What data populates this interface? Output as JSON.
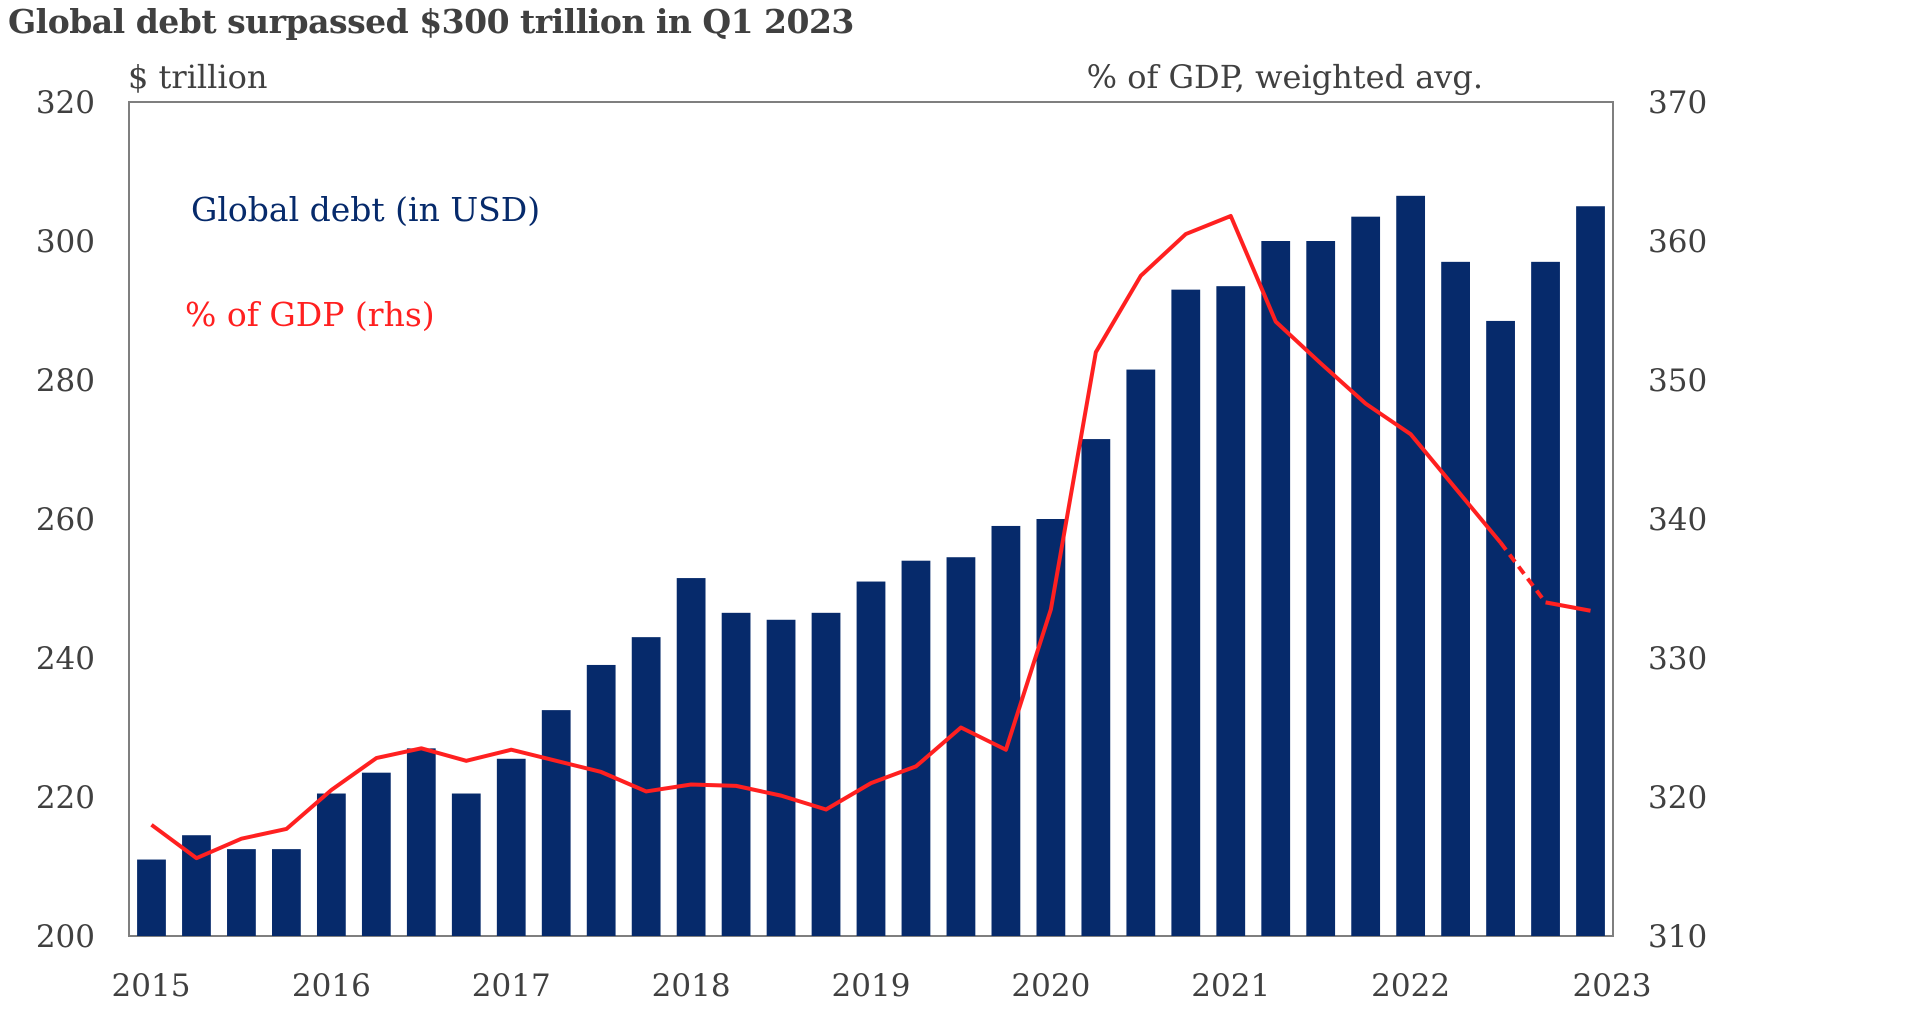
{
  "chart_data": {
    "type": "bar",
    "title": "Global debt surpassed $300  trillion in Q1 2023",
    "y_left_unit": "$ trillion",
    "y_right_unit": "% of GDP, weighted avg.",
    "ylim_left": [
      200,
      320
    ],
    "ylim_right": [
      310,
      370
    ],
    "yticks_left": [
      "200",
      "220",
      "240",
      "260",
      "280",
      "300",
      "320"
    ],
    "yticks_right": [
      "310",
      "320",
      "330",
      "340",
      "350",
      "360",
      "370"
    ],
    "xticks": [
      "2015",
      "2016",
      "2017",
      "2018",
      "2019",
      "2020",
      "2021",
      "2022",
      "2023"
    ],
    "grid": false,
    "legend_placement": "top-left",
    "colors": {
      "bar": "#062a6b",
      "line": "#ff2020",
      "text": "#404040"
    },
    "series": [
      {
        "name": "Global debt (in USD)",
        "type": "bar",
        "axis": "left",
        "x": [
          "Q1 2015",
          "Q2 2015",
          "Q3 2015",
          "Q4 2015",
          "Q1 2016",
          "Q2 2016",
          "Q3 2016",
          "Q4 2016",
          "Q1 2017",
          "Q2 2017",
          "Q3 2017",
          "Q4 2017",
          "Q1 2018",
          "Q2 2018",
          "Q3 2018",
          "Q4 2018",
          "Q1 2019",
          "Q2 2019",
          "Q3 2019",
          "Q4 2019",
          "Q1 2020",
          "Q2 2020",
          "Q3 2020",
          "Q4 2020",
          "Q1 2021",
          "Q2 2021",
          "Q3 2021",
          "Q4 2021",
          "Q1 2022",
          "Q2 2022",
          "Q3 2022",
          "Q4 2022",
          "Q1 2023"
        ],
        "values": [
          211,
          214.5,
          212.5,
          212.5,
          220.5,
          223.5,
          227,
          220.5,
          225.5,
          232.5,
          239,
          243,
          251.5,
          246.5,
          245.5,
          246.5,
          251,
          254,
          254.5,
          259,
          260,
          271.5,
          281.5,
          293,
          293.5,
          300,
          300,
          303.5,
          306.5,
          297,
          288.5,
          297,
          305
        ]
      },
      {
        "name": "% of GDP (rhs)",
        "type": "line",
        "axis": "right",
        "x": [
          "Q1 2015",
          "Q2 2015",
          "Q3 2015",
          "Q4 2015",
          "Q1 2016",
          "Q2 2016",
          "Q3 2016",
          "Q4 2016",
          "Q1 2017",
          "Q2 2017",
          "Q3 2017",
          "Q4 2017",
          "Q1 2018",
          "Q2 2018",
          "Q3 2018",
          "Q4 2018",
          "Q1 2019",
          "Q2 2019",
          "Q3 2019",
          "Q4 2019",
          "Q1 2020",
          "Q2 2020",
          "Q3 2020",
          "Q4 2020",
          "Q1 2021",
          "Q2 2021",
          "Q3 2021",
          "Q4 2021",
          "Q1 2022",
          "Q2 2022",
          "Q3 2022",
          "Q4 2022",
          "Q1 2023"
        ],
        "values": [
          318,
          315.6,
          317,
          317.7,
          320.5,
          322.8,
          323.5,
          322.6,
          323.4,
          322.6,
          321.8,
          320.4,
          320.9,
          320.8,
          320.1,
          319.1,
          321,
          322.2,
          325,
          323.4,
          333.5,
          352,
          357.5,
          360.5,
          361.8,
          354.2,
          351.2,
          348.3,
          346.1,
          342.2,
          338.3,
          334,
          333.4
        ]
      }
    ]
  }
}
